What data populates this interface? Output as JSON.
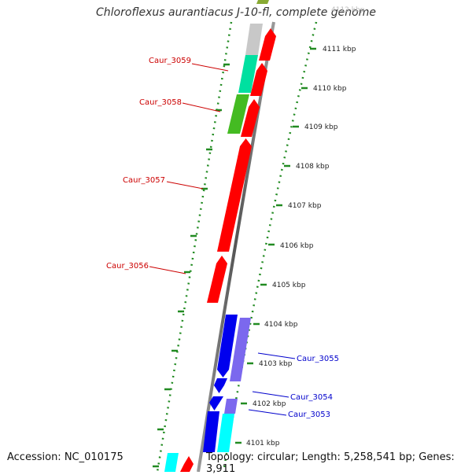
{
  "title": "Chloroflexus aurantiacus J-10-fl, complete genome",
  "footer": {
    "accession": "Accession: NC_010175",
    "topology": "Topology: circular; Length: 5,258,541 bp; Genes: 3,911"
  },
  "colors": {
    "red": "#ff0000",
    "blue": "#0000ee",
    "slate": "#7b68ee",
    "cyan": "#00ffff",
    "green": "#44bb22",
    "teal": "#00e0a0",
    "gray": "#c8c8c8",
    "olive": "#88aa33",
    "axis": "#666666",
    "ticks": "#228b22"
  },
  "scale_labels": [
    "4112 kbp",
    "4111 kbp",
    "4110 kbp",
    "4109 kbp",
    "4108 kbp",
    "4107 kbp",
    "4106 kbp",
    "4105 kbp",
    "4104 kbp",
    "4103 kbp",
    "4102 kbp",
    "4101 kbp"
  ],
  "gene_labels": [
    {
      "text": "Caur_3059",
      "color": "#cc0000"
    },
    {
      "text": "Caur_3058",
      "color": "#cc0000"
    },
    {
      "text": "Caur_3057",
      "color": "#cc0000"
    },
    {
      "text": "Caur_3056",
      "color": "#cc0000"
    },
    {
      "text": "Caur_3055",
      "color": "#0000cc"
    },
    {
      "text": "Caur_3054",
      "color": "#0000cc"
    },
    {
      "text": "Caur_3053",
      "color": "#0000cc"
    }
  ]
}
